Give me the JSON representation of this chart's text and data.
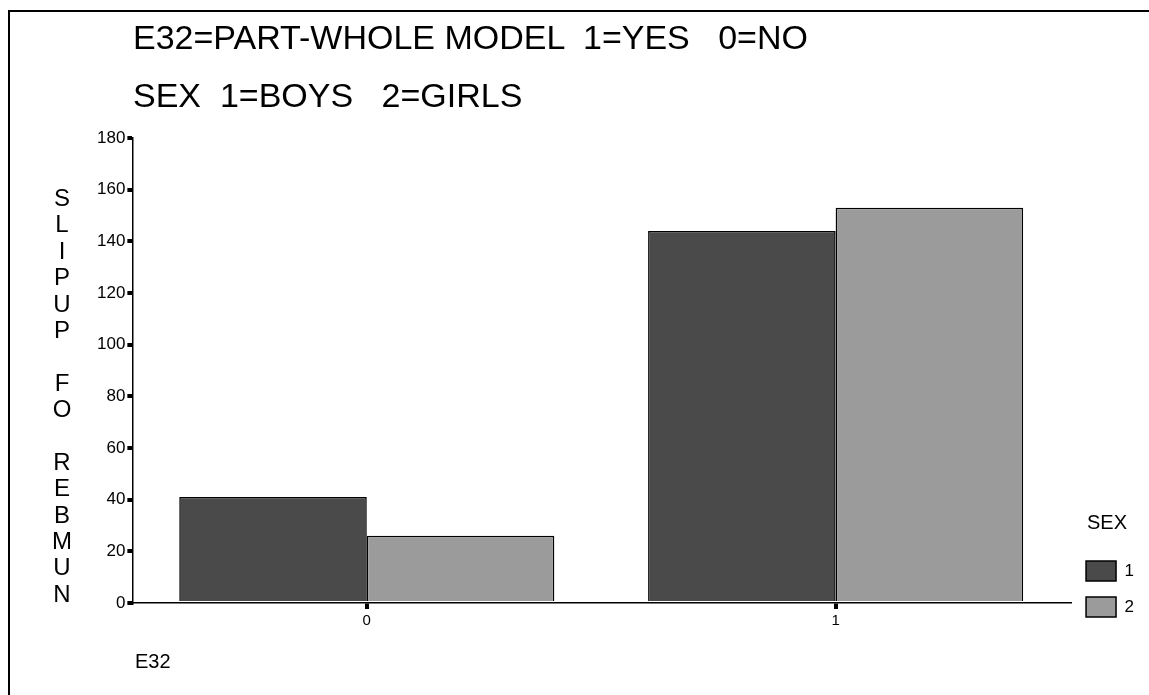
{
  "chart_data": {
    "type": "bar",
    "title": "E32=PART-WHOLE MODEL  1=YES   0=NO",
    "subtitle": "SEX  1=BOYS   2=GIRLS",
    "xlabel": "E32",
    "ylabel": "NUMBER OF PUPILS",
    "legend_title": "SEX",
    "categories": [
      "0",
      "1"
    ],
    "series": [
      {
        "name": "1",
        "color": "#4a4a4a",
        "values": [
          41,
          144
        ]
      },
      {
        "name": "2",
        "color": "#9b9b9b",
        "values": [
          26,
          153
        ]
      }
    ],
    "ylim": [
      0,
      180
    ],
    "yticks": [
      0,
      20,
      40,
      60,
      80,
      100,
      120,
      140,
      160,
      180
    ],
    "grid": false,
    "legend": "bottom right"
  }
}
